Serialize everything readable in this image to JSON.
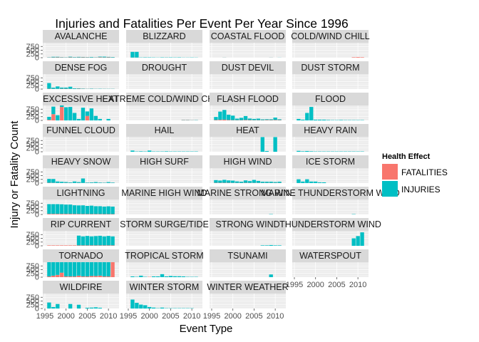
{
  "chart_data": {
    "type": "bar",
    "title": "Injuries and Fatalities Per Event Per Year Since 1996",
    "xlabel": "Event Type",
    "ylabel": "Injury or Fatality Count",
    "x_ticks": [
      1995,
      2000,
      2005,
      2010
    ],
    "y_ticks": [
      0,
      250,
      500,
      750
    ],
    "xlim": [
      1994.5,
      2012.5
    ],
    "ylim": [
      0,
      1000
    ],
    "stacked": true,
    "legend": {
      "title": "Health Effect",
      "position": "right",
      "entries": [
        {
          "name": "FATALITIES",
          "color": "#F8766D"
        },
        {
          "name": "INJURIES",
          "color": "#00BFC4"
        }
      ]
    },
    "years": [
      1996,
      1997,
      1998,
      1999,
      2000,
      2001,
      2002,
      2003,
      2004,
      2005,
      2006,
      2007,
      2008,
      2009,
      2010,
      2011
    ],
    "panels": [
      {
        "name": "AVALANCHE",
        "fatalities": [
          15,
          20,
          25,
          20,
          15,
          25,
          15,
          20,
          25,
          20,
          15,
          15,
          30,
          20,
          25,
          15
        ],
        "injuries": [
          15,
          40,
          35,
          20,
          15,
          40,
          25,
          35,
          25,
          20,
          35,
          15,
          40,
          50,
          30,
          30
        ]
      },
      {
        "name": "BLIZZARD",
        "fatalities": [
          10,
          10,
          0,
          5,
          0,
          0,
          0,
          0,
          5,
          0,
          0,
          0,
          0,
          0,
          0,
          0
        ],
        "injuries": [
          380,
          380,
          15,
          20,
          20,
          15,
          10,
          20,
          15,
          20,
          15,
          20,
          10,
          10,
          15,
          10
        ]
      },
      {
        "name": "COASTAL FLOOD",
        "fatalities": [
          0,
          0,
          5,
          0,
          0,
          0,
          0,
          0,
          0,
          0,
          0,
          0,
          0,
          5,
          0,
          0
        ],
        "injuries": [
          0,
          0,
          5,
          0,
          0,
          0,
          0,
          0,
          0,
          0,
          0,
          0,
          0,
          5,
          0,
          5
        ]
      },
      {
        "name": "COLD/WIND CHILL",
        "fatalities": [
          0,
          0,
          0,
          0,
          0,
          0,
          0,
          0,
          0,
          0,
          0,
          0,
          0,
          30,
          40,
          30
        ],
        "injuries": [
          0,
          0,
          0,
          0,
          0,
          0,
          0,
          0,
          0,
          0,
          0,
          0,
          0,
          0,
          0,
          0
        ]
      },
      {
        "name": "DENSE FOG",
        "fatalities": [
          20,
          15,
          15,
          20,
          20,
          15,
          10,
          20,
          15,
          10,
          10,
          5,
          5,
          5,
          5,
          5
        ],
        "injuries": [
          380,
          80,
          160,
          80,
          80,
          140,
          40,
          30,
          20,
          10,
          20,
          10,
          15,
          10,
          10,
          10
        ]
      },
      {
        "name": "DROUGHT",
        "fatalities": [
          0,
          0,
          0,
          0,
          0,
          0,
          0,
          0,
          0,
          0,
          0,
          0,
          0,
          0,
          0,
          0
        ],
        "injuries": [
          0,
          0,
          0,
          0,
          0,
          0,
          0,
          0,
          0,
          0,
          0,
          0,
          0,
          0,
          0,
          0
        ]
      },
      {
        "name": "DUST DEVIL",
        "fatalities": [
          0,
          0,
          0,
          0,
          0,
          0,
          0,
          0,
          0,
          0,
          0,
          0,
          0,
          0,
          0,
          0
        ],
        "injuries": [
          0,
          0,
          0,
          0,
          0,
          0,
          0,
          0,
          0,
          0,
          0,
          0,
          0,
          0,
          0,
          0
        ]
      },
      {
        "name": "DUST STORM",
        "fatalities": [
          0,
          0,
          0,
          0,
          0,
          0,
          0,
          0,
          0,
          0,
          0,
          0,
          0,
          0,
          0,
          0
        ],
        "injuries": [
          0,
          0,
          0,
          0,
          0,
          0,
          0,
          0,
          0,
          0,
          0,
          0,
          0,
          0,
          0,
          0
        ]
      },
      {
        "name": "EXCESSIVE HEAT",
        "fatalities": [
          40,
          420,
          0,
          900,
          0,
          0,
          0,
          0,
          0,
          300,
          0,
          0,
          0,
          0,
          0,
          0
        ],
        "injuries": [
          200,
          500,
          350,
          100,
          880,
          900,
          500,
          100,
          850,
          300,
          800,
          300,
          100,
          0,
          100,
          0
        ]
      },
      {
        "name": "EXTREME COLD/WIND CHILL",
        "fatalities": [
          0,
          0,
          0,
          0,
          0,
          0,
          0,
          0,
          0,
          0,
          0,
          0,
          20,
          20,
          15,
          10
        ],
        "injuries": [
          0,
          0,
          0,
          0,
          0,
          0,
          0,
          0,
          0,
          0,
          0,
          0,
          15,
          15,
          10,
          15
        ]
      },
      {
        "name": "FLASH FLOOD",
        "fatalities": [
          30,
          40,
          50,
          30,
          20,
          20,
          20,
          30,
          25,
          20,
          20,
          20,
          30,
          25,
          30,
          25
        ],
        "injuries": [
          200,
          550,
          650,
          350,
          300,
          100,
          150,
          260,
          100,
          80,
          100,
          50,
          50,
          50,
          160,
          50
        ]
      },
      {
        "name": "FLOOD",
        "fatalities": [
          0,
          0,
          0,
          0,
          0,
          0,
          0,
          0,
          0,
          0,
          0,
          0,
          0,
          0,
          0,
          0
        ],
        "injuries": [
          100,
          50,
          500,
          900,
          50,
          50,
          50,
          30,
          20,
          20,
          30,
          20,
          20,
          20,
          20,
          20
        ]
      },
      {
        "name": "FUNNEL CLOUD",
        "fatalities": [
          0,
          0,
          0,
          0,
          0,
          0,
          0,
          0,
          0,
          0,
          0,
          0,
          0,
          0,
          0,
          0
        ],
        "injuries": [
          0,
          0,
          0,
          0,
          0,
          0,
          0,
          0,
          0,
          0,
          0,
          0,
          0,
          0,
          0,
          0
        ]
      },
      {
        "name": "HAIL",
        "fatalities": [
          0,
          0,
          0,
          0,
          0,
          0,
          0,
          0,
          0,
          0,
          0,
          0,
          0,
          0,
          0,
          0
        ],
        "injuries": [
          80,
          20,
          30,
          20,
          80,
          20,
          20,
          20,
          30,
          20,
          20,
          20,
          20,
          20,
          20,
          20
        ]
      },
      {
        "name": "HEAT",
        "fatalities": [
          0,
          0,
          0,
          0,
          0,
          0,
          0,
          0,
          0,
          0,
          0,
          0,
          0,
          0,
          0,
          0
        ],
        "injuries": [
          0,
          0,
          0,
          0,
          0,
          0,
          0,
          0,
          0,
          0,
          0,
          980,
          50,
          0,
          980,
          0
        ]
      },
      {
        "name": "HEAVY RAIN",
        "fatalities": [
          0,
          0,
          0,
          0,
          0,
          0,
          0,
          0,
          0,
          0,
          0,
          0,
          0,
          0,
          0,
          0
        ],
        "injuries": [
          60,
          30,
          50,
          30,
          20,
          20,
          20,
          20,
          20,
          20,
          20,
          20,
          20,
          20,
          20,
          20
        ]
      },
      {
        "name": "HEAVY SNOW",
        "fatalities": [
          20,
          15,
          10,
          10,
          15,
          10,
          10,
          10,
          10,
          10,
          10,
          10,
          10,
          10,
          10,
          10
        ],
        "injuries": [
          260,
          260,
          100,
          80,
          60,
          40,
          100,
          60,
          300,
          30,
          40,
          60,
          30,
          20,
          60,
          30
        ]
      },
      {
        "name": "HIGH SURF",
        "fatalities": [
          0,
          0,
          0,
          0,
          0,
          0,
          0,
          0,
          0,
          0,
          0,
          0,
          0,
          0,
          0,
          0
        ],
        "injuries": [
          0,
          0,
          0,
          0,
          0,
          0,
          0,
          0,
          0,
          0,
          0,
          0,
          0,
          0,
          0,
          0
        ]
      },
      {
        "name": "HIGH WIND",
        "fatalities": [
          20,
          20,
          20,
          20,
          15,
          15,
          15,
          20,
          15,
          15,
          15,
          15,
          15,
          15,
          15,
          15
        ],
        "injuries": [
          180,
          150,
          200,
          160,
          150,
          100,
          80,
          160,
          120,
          200,
          130,
          80,
          80,
          80,
          60,
          80
        ]
      },
      {
        "name": "ICE STORM",
        "fatalities": [
          5,
          5,
          5,
          5,
          5,
          5,
          0,
          0,
          0,
          0,
          0,
          0,
          0,
          0,
          0,
          0
        ],
        "injuries": [
          250,
          100,
          250,
          100,
          100,
          50,
          50,
          0,
          0,
          0,
          0,
          0,
          0,
          0,
          0,
          0
        ]
      },
      {
        "name": "LIGHTNING",
        "fatalities": [
          40,
          40,
          40,
          40,
          40,
          40,
          35,
          35,
          30,
          30,
          30,
          30,
          30,
          25,
          25,
          25
        ],
        "injuries": [
          650,
          650,
          650,
          640,
          620,
          620,
          580,
          570,
          580,
          540,
          560,
          520,
          520,
          500,
          520,
          500
        ]
      },
      {
        "name": "MARINE HIGH WIND",
        "fatalities": [
          0,
          0,
          0,
          0,
          0,
          0,
          0,
          0,
          0,
          0,
          0,
          0,
          0,
          0,
          0,
          0
        ],
        "injuries": [
          0,
          0,
          0,
          0,
          0,
          0,
          0,
          0,
          0,
          0,
          0,
          0,
          0,
          0,
          0,
          0
        ]
      },
      {
        "name": "MARINE STRONG WIND",
        "fatalities": [
          0,
          0,
          0,
          0,
          0,
          0,
          0,
          0,
          0,
          0,
          0,
          0,
          0,
          0,
          0,
          0
        ],
        "injuries": [
          0,
          0,
          0,
          0,
          0,
          0,
          0,
          0,
          0,
          0,
          0,
          0,
          0,
          20,
          0,
          0
        ]
      },
      {
        "name": "MARINE THUNDERSTORM WIND",
        "fatalities": [
          0,
          0,
          0,
          0,
          0,
          0,
          0,
          0,
          0,
          0,
          0,
          0,
          0,
          0,
          0,
          0
        ],
        "injuries": [
          0,
          0,
          0,
          0,
          0,
          0,
          0,
          0,
          0,
          0,
          0,
          0,
          0,
          20,
          0,
          0
        ]
      },
      {
        "name": "RIP CURRENT",
        "fatalities": [
          30,
          30,
          30,
          30,
          30,
          30,
          30,
          30,
          30,
          30,
          30,
          30,
          30,
          30,
          30,
          30
        ],
        "injuries": [
          0,
          0,
          0,
          0,
          0,
          0,
          0,
          650,
          600,
          630,
          600,
          620,
          640,
          600,
          630,
          600
        ]
      },
      {
        "name": "STORM SURGE/TIDE",
        "fatalities": [
          0,
          0,
          0,
          0,
          0,
          0,
          0,
          0,
          0,
          0,
          0,
          0,
          0,
          0,
          0,
          0
        ],
        "injuries": [
          0,
          0,
          0,
          0,
          0,
          0,
          0,
          0,
          0,
          0,
          0,
          0,
          0,
          0,
          0,
          0
        ]
      },
      {
        "name": "STRONG WIND",
        "fatalities": [
          0,
          0,
          0,
          0,
          0,
          0,
          0,
          0,
          0,
          0,
          0,
          0,
          0,
          0,
          0,
          0
        ],
        "injuries": [
          0,
          0,
          0,
          0,
          0,
          0,
          0,
          0,
          0,
          0,
          0,
          30,
          30,
          50,
          30,
          30
        ]
      },
      {
        "name": "THUNDERSTORM WIND",
        "fatalities": [
          0,
          0,
          0,
          0,
          0,
          0,
          0,
          0,
          0,
          0,
          0,
          0,
          0,
          0,
          0,
          0
        ],
        "injuries": [
          0,
          0,
          0,
          0,
          0,
          0,
          0,
          0,
          0,
          0,
          0,
          0,
          0,
          500,
          650,
          900
        ]
      },
      {
        "name": "TORNADO",
        "fatalities": [
          50,
          100,
          150,
          300,
          50,
          50,
          50,
          100,
          50,
          50,
          80,
          80,
          100,
          50,
          50,
          1000
        ],
        "injuries": [
          950,
          950,
          850,
          700,
          950,
          950,
          950,
          900,
          950,
          950,
          920,
          920,
          900,
          950,
          950,
          0
        ]
      },
      {
        "name": "TROPICAL STORM",
        "fatalities": [
          0,
          0,
          0,
          0,
          20,
          0,
          0,
          0,
          0,
          0,
          0,
          0,
          0,
          0,
          0,
          0
        ],
        "injuries": [
          50,
          20,
          100,
          20,
          0,
          50,
          50,
          200,
          50,
          80,
          60,
          60,
          50,
          20,
          20,
          20
        ]
      },
      {
        "name": "TSUNAMI",
        "fatalities": [
          0,
          0,
          0,
          0,
          0,
          0,
          0,
          0,
          0,
          0,
          0,
          0,
          0,
          0,
          0,
          0
        ],
        "injuries": [
          0,
          0,
          0,
          0,
          0,
          0,
          0,
          0,
          0,
          0,
          0,
          0,
          0,
          180,
          0,
          0
        ]
      },
      {
        "name": "WATERSPOUT",
        "fatalities": [
          0,
          0,
          0,
          0,
          0,
          0,
          0,
          0,
          0,
          0,
          0,
          0,
          0,
          0,
          0,
          0
        ],
        "injuries": [
          0,
          0,
          0,
          0,
          0,
          0,
          0,
          0,
          0,
          0,
          0,
          0,
          0,
          0,
          0,
          0
        ]
      },
      {
        "name": "WILDFIRE",
        "fatalities": [
          0,
          0,
          0,
          0,
          0,
          0,
          0,
          0,
          0,
          0,
          0,
          0,
          0,
          0,
          0,
          0
        ],
        "injuries": [
          400,
          100,
          300,
          0,
          0,
          300,
          0,
          250,
          0,
          50,
          60,
          80,
          50,
          0,
          0,
          0
        ]
      },
      {
        "name": "WINTER STORM",
        "fatalities": [
          0,
          0,
          0,
          0,
          0,
          0,
          0,
          0,
          0,
          0,
          0,
          0,
          0,
          0,
          0,
          0
        ],
        "injuries": [
          600,
          380,
          260,
          220,
          100,
          60,
          20,
          60,
          20,
          20,
          20,
          20,
          20,
          20,
          20,
          0
        ]
      },
      {
        "name": "WINTER WEATHER",
        "fatalities": [
          0,
          0,
          0,
          0,
          0,
          0,
          0,
          0,
          0,
          0,
          0,
          0,
          0,
          0,
          0,
          0
        ],
        "injuries": [
          0,
          0,
          0,
          0,
          0,
          0,
          0,
          0,
          0,
          0,
          0,
          0,
          0,
          0,
          0,
          0
        ]
      }
    ]
  }
}
